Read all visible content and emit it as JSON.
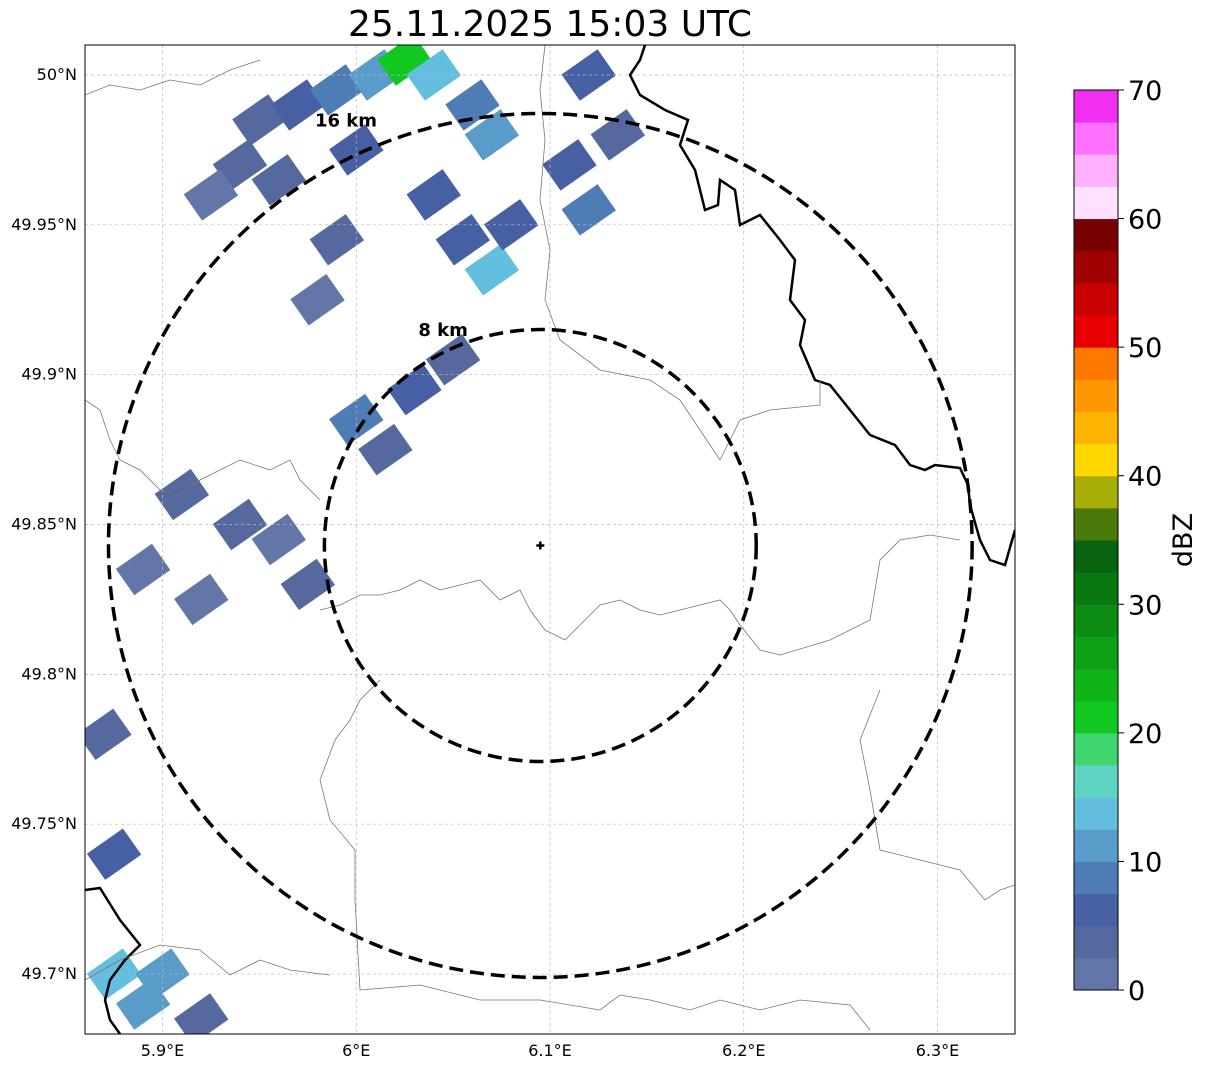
{
  "title": "25.11.2025 15:03 UTC",
  "map": {
    "lon_range": [
      5.86,
      6.34
    ],
    "lat_range": [
      49.68,
      50.01
    ],
    "lon_ticks": [
      {
        "value": 5.9,
        "label": "5.9°E"
      },
      {
        "value": 6.0,
        "label": "6°E"
      },
      {
        "value": 6.1,
        "label": "6.1°E"
      },
      {
        "value": 6.2,
        "label": "6.2°E"
      },
      {
        "value": 6.3,
        "label": "6.3°E"
      }
    ],
    "lat_ticks": [
      {
        "value": 50.0,
        "label": "50°N"
      },
      {
        "value": 49.95,
        "label": "49.95°N"
      },
      {
        "value": 49.9,
        "label": "49.9°N"
      },
      {
        "value": 49.85,
        "label": "49.85°N"
      },
      {
        "value": 49.8,
        "label": "49.8°N"
      },
      {
        "value": 49.75,
        "label": "49.75°N"
      },
      {
        "value": 49.7,
        "label": "49.7°N"
      }
    ],
    "grid": true,
    "center": {
      "lon": 6.095,
      "lat": 49.843
    },
    "range_rings": [
      {
        "radius_km": 8,
        "label": "8 km"
      },
      {
        "radius_km": 16,
        "label": "16 km"
      }
    ]
  },
  "colorbar": {
    "label": "dBZ",
    "min": 0,
    "max": 70,
    "step": 2.5,
    "tick_values": [
      0,
      10,
      20,
      30,
      40,
      50,
      60,
      70
    ],
    "colors": [
      "#6376a8",
      "#55699f",
      "#4760a4",
      "#4e7cb5",
      "#5a9cc9",
      "#64bee0",
      "#5fd3c4",
      "#3fd66e",
      "#10c820",
      "#10b418",
      "#0ea014",
      "#0c8c12",
      "#0a7810",
      "#08640e",
      "#4a7a0a",
      "#a8ae08",
      "#ffd800",
      "#ffb400",
      "#ff9800",
      "#ff7800",
      "#e60000",
      "#c80000",
      "#a00000",
      "#780000",
      "#ffe0ff",
      "#ffb0ff",
      "#ff70ff",
      "#f030f0"
    ]
  },
  "cells": [
    {
      "lon": 5.95,
      "lat": 49.985,
      "dbz": 4
    },
    {
      "lon": 5.97,
      "lat": 49.99,
      "dbz": 5
    },
    {
      "lon": 5.99,
      "lat": 49.995,
      "dbz": 9
    },
    {
      "lon": 6.01,
      "lat": 50.0,
      "dbz": 12
    },
    {
      "lon": 6.025,
      "lat": 50.005,
      "dbz": 22
    },
    {
      "lon": 6.04,
      "lat": 50.0,
      "dbz": 14
    },
    {
      "lon": 6.06,
      "lat": 49.99,
      "dbz": 8
    },
    {
      "lon": 6.07,
      "lat": 49.98,
      "dbz": 10
    },
    {
      "lon": 6.0,
      "lat": 49.975,
      "dbz": 6
    },
    {
      "lon": 5.94,
      "lat": 49.97,
      "dbz": 3
    },
    {
      "lon": 5.925,
      "lat": 49.96,
      "dbz": 2
    },
    {
      "lon": 5.96,
      "lat": 49.965,
      "dbz": 4
    },
    {
      "lon": 6.04,
      "lat": 49.96,
      "dbz": 6
    },
    {
      "lon": 6.055,
      "lat": 49.945,
      "dbz": 7
    },
    {
      "lon": 6.07,
      "lat": 49.935,
      "dbz": 14
    },
    {
      "lon": 6.08,
      "lat": 49.95,
      "dbz": 5
    },
    {
      "lon": 6.11,
      "lat": 49.97,
      "dbz": 6
    },
    {
      "lon": 6.12,
      "lat": 49.955,
      "dbz": 8
    },
    {
      "lon": 6.135,
      "lat": 49.98,
      "dbz": 4
    },
    {
      "lon": 6.12,
      "lat": 50.0,
      "dbz": 6
    },
    {
      "lon": 6.0,
      "lat": 49.885,
      "dbz": 8
    },
    {
      "lon": 6.03,
      "lat": 49.895,
      "dbz": 5
    },
    {
      "lon": 6.05,
      "lat": 49.905,
      "dbz": 4
    },
    {
      "lon": 6.015,
      "lat": 49.875,
      "dbz": 3
    },
    {
      "lon": 5.91,
      "lat": 49.86,
      "dbz": 4
    },
    {
      "lon": 5.94,
      "lat": 49.85,
      "dbz": 3
    },
    {
      "lon": 5.96,
      "lat": 49.845,
      "dbz": 2
    },
    {
      "lon": 5.975,
      "lat": 49.83,
      "dbz": 3
    },
    {
      "lon": 5.89,
      "lat": 49.835,
      "dbz": 2
    },
    {
      "lon": 5.92,
      "lat": 49.825,
      "dbz": 1
    },
    {
      "lon": 5.87,
      "lat": 49.78,
      "dbz": 3
    },
    {
      "lon": 5.875,
      "lat": 49.74,
      "dbz": 6
    },
    {
      "lon": 5.875,
      "lat": 49.7,
      "dbz": 13
    },
    {
      "lon": 5.89,
      "lat": 49.69,
      "dbz": 10
    },
    {
      "lon": 5.9,
      "lat": 49.7,
      "dbz": 11
    },
    {
      "lon": 5.92,
      "lat": 49.685,
      "dbz": 4
    },
    {
      "lon": 5.98,
      "lat": 49.925,
      "dbz": 2
    },
    {
      "lon": 5.99,
      "lat": 49.945,
      "dbz": 3
    }
  ]
}
